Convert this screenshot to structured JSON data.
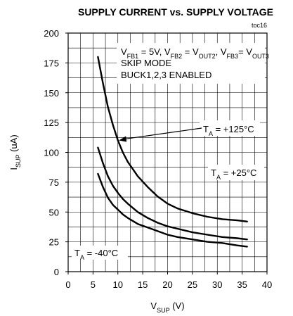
{
  "chart_data": {
    "type": "line",
    "title": "SUPPLY CURRENT vs. SUPPLY VOLTAGE",
    "figure_tag": "toc16",
    "xlabel": {
      "main": "V",
      "sub": "SUP",
      "unit": " (V)"
    },
    "ylabel": {
      "main": "I",
      "sub": "SUP",
      "unit": " (uA)"
    },
    "xlim": [
      0,
      40
    ],
    "ylim": [
      0,
      200
    ],
    "x_ticks": [
      0,
      5,
      10,
      15,
      20,
      25,
      30,
      35,
      40
    ],
    "y_ticks": [
      0,
      25,
      50,
      75,
      100,
      125,
      150,
      175,
      200
    ],
    "grid": true,
    "conditions": {
      "line1": [
        {
          "t": "V",
          "s": ""
        },
        {
          "t": "FB1",
          "s": "sub"
        },
        {
          "t": " = 5V, V",
          "s": ""
        },
        {
          "t": "FB2",
          "s": "sub"
        },
        {
          "t": " = V",
          "s": ""
        },
        {
          "t": "OUT2",
          "s": "sub"
        },
        {
          "t": ", V",
          "s": ""
        },
        {
          "t": "FB3",
          "s": "sub"
        },
        {
          "t": "= V",
          "s": ""
        },
        {
          "t": "OUT3",
          "s": "sub"
        }
      ],
      "line2": "SKIP MODE",
      "line3": "BUCK1,2,3 ENABLED"
    },
    "series": [
      {
        "name": "T_A = +125°C",
        "label_parts": [
          {
            "t": "T",
            "s": ""
          },
          {
            "t": "A",
            "s": "sub"
          },
          {
            "t": " = +125°C",
            "s": ""
          }
        ],
        "x": [
          6,
          7,
          8,
          9,
          10,
          11,
          12,
          13,
          14,
          16,
          18,
          20,
          22,
          25,
          28,
          31,
          34,
          36
        ],
        "y": [
          180,
          158,
          138,
          123,
          110,
          100,
          92,
          86,
          80,
          71,
          63,
          57,
          53,
          49,
          46,
          44,
          43,
          42
        ]
      },
      {
        "name": "T_A = +25°C",
        "label_parts": [
          {
            "t": "T",
            "s": ""
          },
          {
            "t": "A",
            "s": "sub"
          },
          {
            "t": " = +25°C",
            "s": ""
          }
        ],
        "x": [
          6,
          7,
          8,
          9,
          10,
          11,
          12,
          14,
          16,
          18,
          20,
          22,
          25,
          28,
          31,
          34,
          36
        ],
        "y": [
          104,
          91,
          80,
          72,
          66,
          61,
          57,
          50,
          45,
          41,
          38,
          36,
          33,
          31,
          29,
          28,
          27
        ]
      },
      {
        "name": "T_A = -40°C",
        "label_parts": [
          {
            "t": "T",
            "s": ""
          },
          {
            "t": "A",
            "s": "sub"
          },
          {
            "t": " = -40°C",
            "s": ""
          }
        ],
        "x": [
          6,
          7,
          8,
          9,
          10,
          11,
          12,
          14,
          16,
          18,
          20,
          22,
          25,
          28,
          31,
          34,
          36
        ],
        "y": [
          82,
          71,
          62,
          56,
          52,
          48,
          45,
          40,
          37,
          34,
          31,
          29,
          27,
          25,
          24,
          22,
          21
        ]
      }
    ]
  }
}
